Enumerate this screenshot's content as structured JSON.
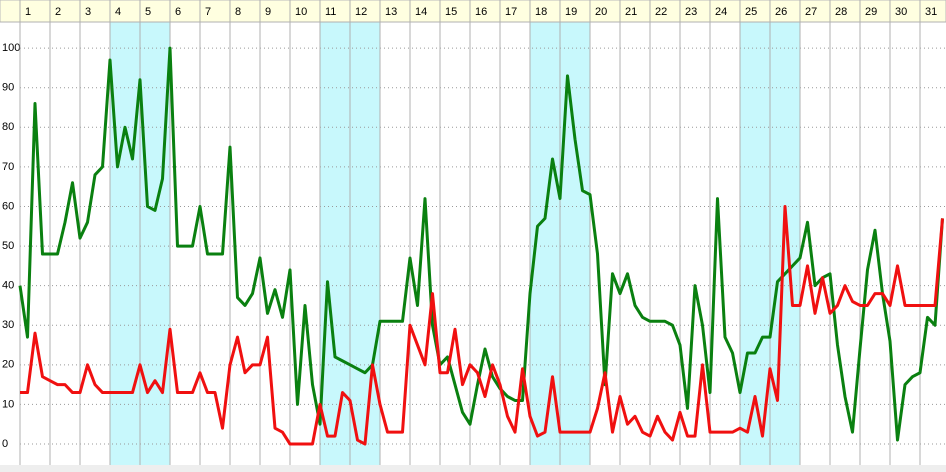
{
  "chart_data": {
    "type": "line",
    "categories": [
      "1",
      "2",
      "3",
      "4",
      "5",
      "6",
      "7",
      "8",
      "9",
      "10",
      "11",
      "12",
      "13",
      "14",
      "15",
      "16",
      "17",
      "18",
      "19",
      "20",
      "21",
      "22",
      "23",
      "24",
      "25",
      "26",
      "27",
      "28",
      "29",
      "30",
      "31"
    ],
    "shaded_days": [
      4,
      5,
      11,
      12,
      18,
      19,
      25,
      26
    ],
    "shade_color": "#c8f8fc",
    "header_color": "#ffffe0",
    "x": [
      1,
      1.25,
      1.5,
      1.75,
      2,
      2.25,
      2.5,
      2.75,
      3,
      3.25,
      3.5,
      3.75,
      4,
      4.25,
      4.5,
      4.75,
      5,
      5.25,
      5.5,
      5.75,
      6,
      6.25,
      6.5,
      6.75,
      7,
      7.25,
      7.5,
      7.75,
      8,
      8.25,
      8.5,
      8.75,
      9,
      9.25,
      9.5,
      9.75,
      10,
      10.25,
      10.5,
      10.75,
      11,
      11.25,
      11.5,
      11.75,
      12,
      12.25,
      12.5,
      12.75,
      13,
      13.25,
      13.5,
      13.75,
      14,
      14.25,
      14.5,
      14.75,
      15,
      15.25,
      15.5,
      15.75,
      16,
      16.25,
      16.5,
      16.75,
      17,
      17.25,
      17.5,
      17.75,
      18,
      18.25,
      18.5,
      18.75,
      19,
      19.25,
      19.5,
      19.75,
      20,
      20.25,
      20.5,
      20.75,
      21,
      21.25,
      21.5,
      21.75,
      22,
      22.25,
      22.5,
      22.75,
      23,
      23.25,
      23.5,
      23.75,
      24,
      24.25,
      24.5,
      24.75,
      25,
      25.25,
      25.5,
      25.75,
      26,
      26.25,
      26.5,
      26.75,
      27,
      27.25,
      27.5,
      27.75,
      28,
      28.25,
      28.5,
      28.75,
      29,
      29.25,
      29.5,
      29.75,
      30,
      30.25,
      30.5,
      30.75,
      31,
      31.25,
      31.5,
      31.75
    ],
    "xlim": [
      1,
      32
    ],
    "ylim": [
      -5.3,
      106.6
    ],
    "yticks": [
      0,
      10,
      20,
      30,
      40,
      50,
      60,
      70,
      80,
      90,
      100
    ],
    "grid": true,
    "series": [
      {
        "color": "#0a8010",
        "values": [
          40,
          27,
          86,
          48,
          48,
          48,
          56,
          66,
          52,
          56,
          68,
          70,
          97,
          70,
          80,
          72,
          92,
          60,
          59,
          67,
          100,
          50,
          50,
          50,
          60,
          48,
          48,
          48,
          75,
          37,
          35,
          38,
          47,
          33,
          39,
          32,
          44,
          10,
          35,
          15,
          5,
          41,
          22,
          21,
          20,
          19,
          18,
          20,
          31,
          31,
          31,
          31,
          47,
          35,
          62,
          30,
          20,
          22,
          15,
          8,
          5,
          15,
          24,
          17,
          14,
          12,
          11,
          11,
          38,
          55,
          57,
          72,
          62,
          93,
          77,
          64,
          63,
          48,
          15,
          43,
          38,
          43,
          35,
          32,
          31,
          31,
          31,
          30,
          25,
          9,
          40,
          30,
          13,
          62,
          27,
          23,
          13,
          23,
          23,
          27,
          27,
          41,
          43,
          45,
          47,
          56,
          40,
          42,
          43,
          25,
          12,
          3,
          24,
          44,
          54,
          38,
          26,
          1,
          15,
          17,
          18,
          32,
          30,
          57
        ]
      },
      {
        "color": "#f01010",
        "values": [
          13,
          13,
          28,
          17,
          16,
          15,
          15,
          13,
          13,
          20,
          15,
          13,
          13,
          13,
          13,
          13,
          20,
          13,
          16,
          13,
          29,
          13,
          13,
          13,
          18,
          13,
          13,
          4,
          20,
          27,
          18,
          20,
          20,
          27,
          4,
          3,
          0,
          0,
          0,
          0,
          10,
          2,
          2,
          13,
          11,
          1,
          0,
          20,
          10,
          3,
          3,
          3,
          30,
          25,
          20,
          38,
          18,
          18,
          29,
          15,
          20,
          18,
          12,
          20,
          15,
          7,
          3,
          19,
          7,
          2,
          3,
          17,
          3,
          3,
          3,
          3,
          3,
          9,
          18,
          3,
          12,
          5,
          7,
          3,
          2,
          7,
          3,
          1,
          8,
          2,
          2,
          20,
          3,
          3,
          3,
          3,
          4,
          3,
          12,
          2,
          19,
          11,
          60,
          35,
          35,
          45,
          33,
          42,
          33,
          35,
          40,
          36,
          35,
          35,
          38,
          38,
          35,
          45,
          35,
          35,
          35,
          35,
          35,
          57
        ]
      }
    ]
  }
}
